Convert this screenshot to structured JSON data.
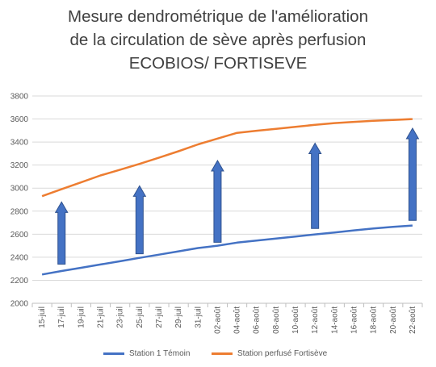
{
  "chart_data": {
    "type": "line",
    "title_lines": [
      "Mesure dendrométrique de l'amélioration",
      "de la circulation de sève après perfusion",
      "ECOBIOS/ FORTISEVE"
    ],
    "categories": [
      "15-juil",
      "17-juil",
      "19-juil",
      "21-juil",
      "23-juil",
      "25-juil",
      "27-juil",
      "29-juil",
      "31-juil",
      "02-août",
      "04-août",
      "06-août",
      "08-août",
      "10-août",
      "12-août",
      "14-août",
      "16-août",
      "18-août",
      "20-août",
      "22-août"
    ],
    "ylim": [
      2000,
      3800
    ],
    "yticks": [
      2000,
      2200,
      2400,
      2600,
      2800,
      3000,
      3200,
      3400,
      3600,
      3800
    ],
    "grid": true,
    "legend_position": "bottom",
    "series": [
      {
        "name": "Station 1 Témoin",
        "color": "#4472C4",
        "values": [
          2250,
          2280,
          2308,
          2337,
          2365,
          2394,
          2422,
          2451,
          2480,
          2500,
          2527,
          2545,
          2562,
          2580,
          2598,
          2615,
          2633,
          2650,
          2663,
          2675
        ]
      },
      {
        "name": "Station perfusé Fortisève",
        "color": "#ED7D31",
        "values": [
          2930,
          2990,
          3050,
          3110,
          3160,
          3210,
          3265,
          3320,
          3380,
          3430,
          3480,
          3498,
          3515,
          3532,
          3550,
          3565,
          3575,
          3585,
          3592,
          3600
        ]
      }
    ],
    "arrows": {
      "color": "#4472C4",
      "items": [
        {
          "x_index": 1,
          "from": 2340,
          "to": 2880
        },
        {
          "x_index": 5,
          "from": 2430,
          "to": 3020
        },
        {
          "x_index": 9,
          "from": 2530,
          "to": 3240
        },
        {
          "x_index": 14,
          "from": 2650,
          "to": 3390
        },
        {
          "x_index": 19,
          "from": 2720,
          "to": 3520
        }
      ]
    }
  }
}
